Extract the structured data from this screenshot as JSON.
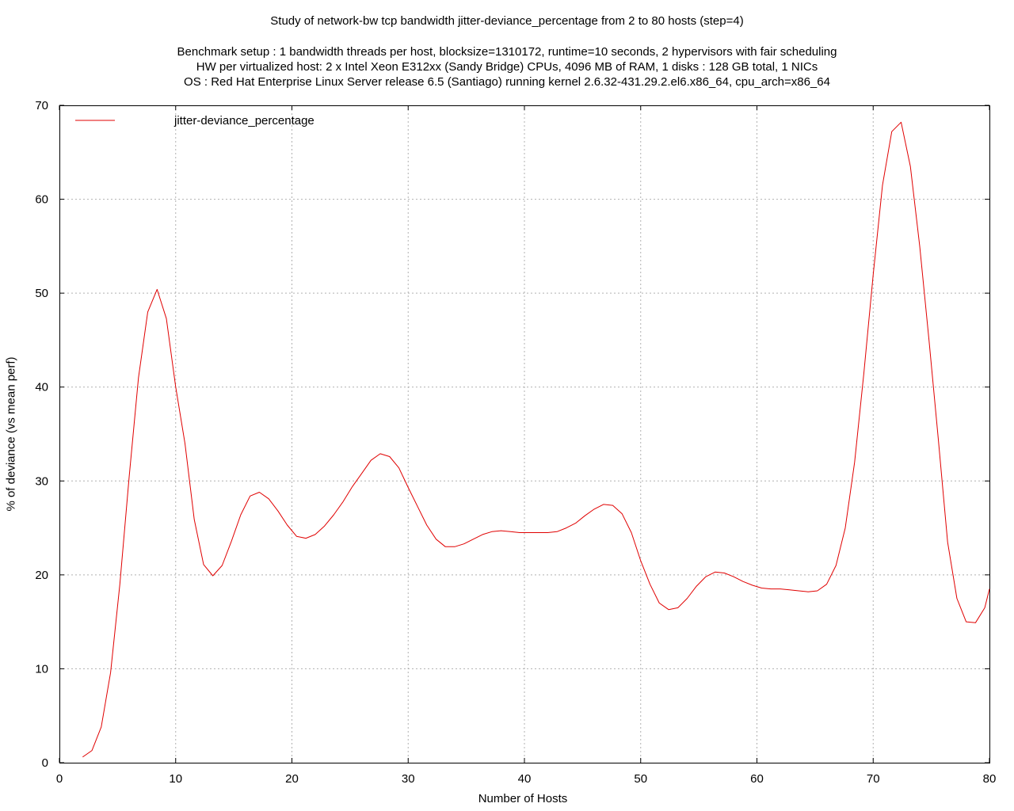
{
  "chart_data": {
    "type": "line",
    "title": "Study of network-bw tcp bandwidth jitter-deviance_percentage from 2 to 80 hosts (step=4)",
    "subtitle_lines": [
      "Benchmark setup : 1 bandwidth threads per host, blocksize=1310172, runtime=10 seconds, 2 hypervisors with fair scheduling",
      "HW per virtualized host: 2 x Intel Xeon E312xx (Sandy Bridge) CPUs, 4096 MB of RAM, 1 disks : 128 GB total, 1 NICs",
      "OS : Red Hat Enterprise Linux Server release 6.5 (Santiago) running kernel 2.6.32-431.29.2.el6.x86_64, cpu_arch=x86_64"
    ],
    "xlabel": "Number of Hosts",
    "ylabel": "% of deviance (vs mean perf)",
    "xlim": [
      0,
      80
    ],
    "ylim": [
      0,
      70
    ],
    "xticks": [
      0,
      10,
      20,
      30,
      40,
      50,
      60,
      70,
      80
    ],
    "yticks": [
      0,
      10,
      20,
      30,
      40,
      50,
      60,
      70
    ],
    "grid": true,
    "legend_position": "top-left",
    "series": [
      {
        "name": "jitter-deviance_percentage",
        "color": "#e00000",
        "x": [
          2,
          2.8,
          3.6,
          4.4,
          5.2,
          6.0,
          6.8,
          7.6,
          8.4,
          9.2,
          10.0,
          10.8,
          11.6,
          12.4,
          13.2,
          14.0,
          14.8,
          15.6,
          16.4,
          17.2,
          18.0,
          18.8,
          19.6,
          20.4,
          21.2,
          22.0,
          22.8,
          23.6,
          24.4,
          25.2,
          26.0,
          26.8,
          27.6,
          28.4,
          29.2,
          30.0,
          30.8,
          31.6,
          32.4,
          33.2,
          34.0,
          34.8,
          35.6,
          36.4,
          37.2,
          38.0,
          38.8,
          39.6,
          40.4,
          41.2,
          42.0,
          42.8,
          43.6,
          44.4,
          45.2,
          46.0,
          46.8,
          47.6,
          48.4,
          49.2,
          50.0,
          50.8,
          51.6,
          52.4,
          53.2,
          54.0,
          54.8,
          55.6,
          56.4,
          57.2,
          58.0,
          58.8,
          59.6,
          60.4,
          61.2,
          62.0,
          62.8,
          63.6,
          64.4,
          65.2,
          66.0,
          66.8,
          67.6,
          68.4,
          69.2,
          70.0,
          70.8,
          71.6,
          72.4,
          73.2,
          74.0,
          74.8,
          75.6,
          76.4,
          77.2,
          78.0,
          78.8,
          79.6,
          80.0
        ],
        "y": [
          0.6,
          1.3,
          3.8,
          9.6,
          19.0,
          30.5,
          41.0,
          48.0,
          50.4,
          47.3,
          40.0,
          34.0,
          25.9,
          21.1,
          19.9,
          21.0,
          23.6,
          26.4,
          28.4,
          28.8,
          28.1,
          26.8,
          25.3,
          24.1,
          23.9,
          24.3,
          25.2,
          26.4,
          27.8,
          29.4,
          30.8,
          32.2,
          32.9,
          32.6,
          31.4,
          29.3,
          27.3,
          25.3,
          23.8,
          23.0,
          23.0,
          23.3,
          23.8,
          24.3,
          24.6,
          24.7,
          24.6,
          24.5,
          24.5,
          24.5,
          24.5,
          24.6,
          25.0,
          25.5,
          26.3,
          27.0,
          27.5,
          27.4,
          26.5,
          24.5,
          21.5,
          19.0,
          17.0,
          16.3,
          16.5,
          17.5,
          18.8,
          19.8,
          20.3,
          20.2,
          19.8,
          19.3,
          18.9,
          18.6,
          18.5,
          18.5,
          18.4,
          18.3,
          18.2,
          18.3,
          19.0,
          21.0,
          25.0,
          32.0,
          41.5,
          52.0,
          61.5,
          67.2,
          68.2,
          63.5,
          55.0,
          45.0,
          34.5,
          23.5,
          17.5,
          15.0,
          14.9,
          16.5,
          18.5
        ]
      }
    ]
  }
}
